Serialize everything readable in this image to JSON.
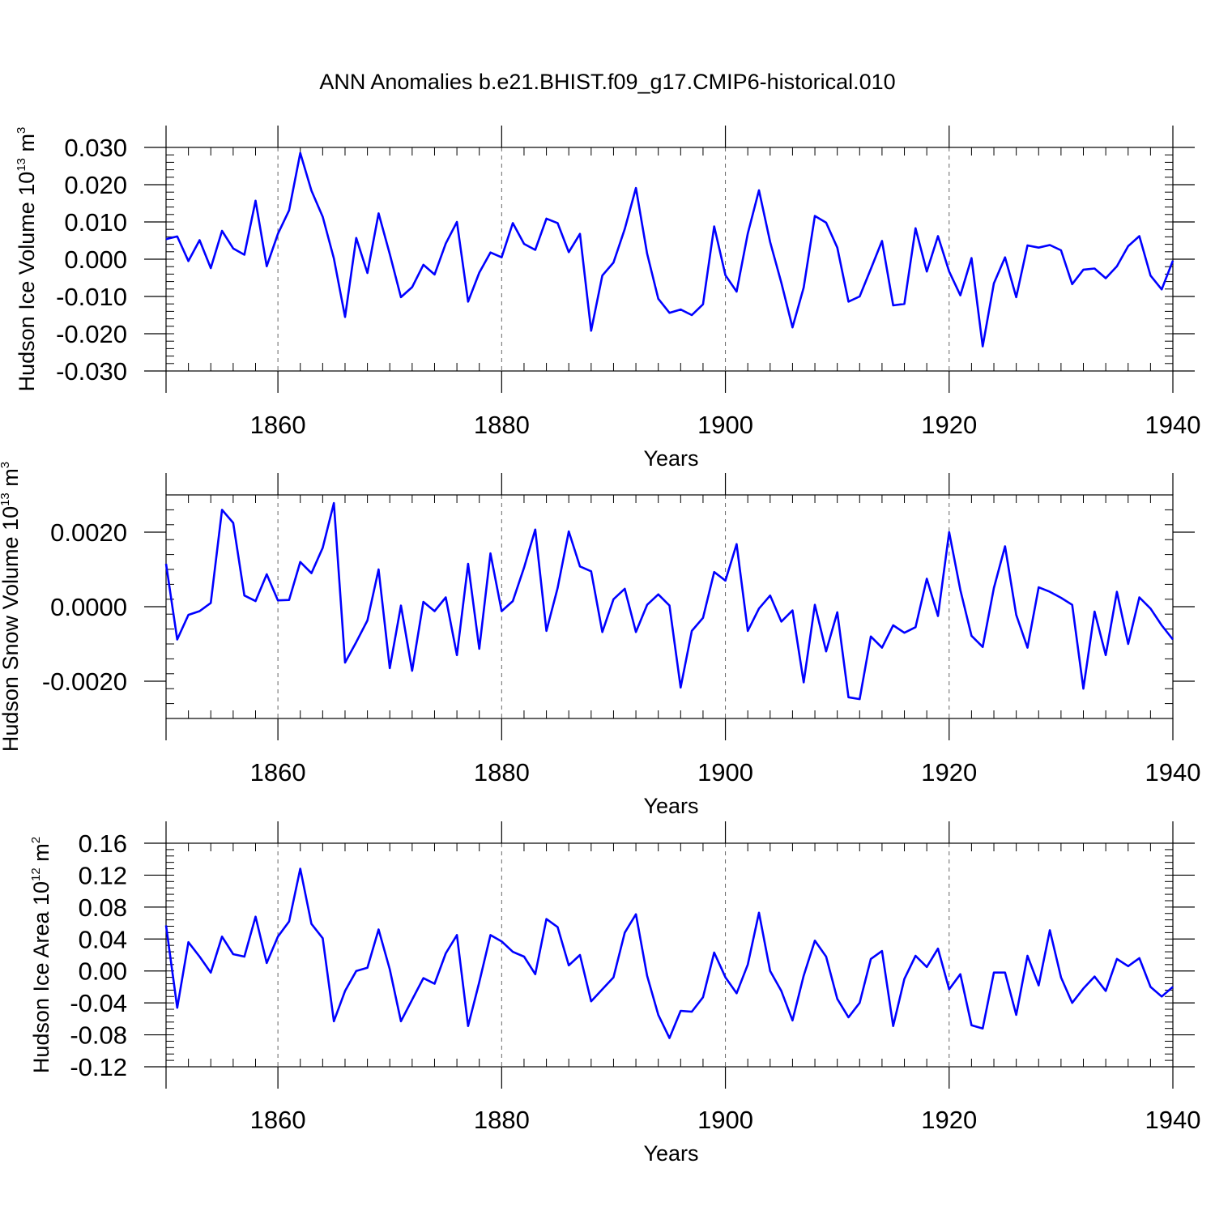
{
  "title": "ANN Anomalies b.e21.BHIST.f09_g17.CMIP6-historical.010",
  "colors": {
    "line": "#0000ff",
    "axes": "#000000",
    "grid": "#666666"
  },
  "chart_data": [
    {
      "type": "line",
      "ylabel_main": "Hudson Ice Volume 10",
      "ylabel_exp": "13",
      "ylabel_unit": "m",
      "ylabel_unit_exp": "3",
      "xlabel": "Years",
      "xlim": [
        1850,
        1940
      ],
      "ylim": [
        -0.03,
        0.03
      ],
      "x_ticks": [
        "1860",
        "1880",
        "1900",
        "1920",
        "1940"
      ],
      "y_ticks": [
        "0.030",
        "0.020",
        "0.010",
        "0.000",
        "-0.010",
        "-0.020",
        "-0.030"
      ],
      "y_tick_values": [
        0.03,
        0.02,
        0.01,
        0.0,
        -0.01,
        -0.02,
        -0.03
      ],
      "x_start": 1850,
      "values": [
        0.0054,
        0.0061,
        -0.0005,
        0.0051,
        -0.0024,
        0.0076,
        0.0029,
        0.0012,
        0.0157,
        -0.0019,
        0.0068,
        0.0131,
        0.0285,
        0.0184,
        0.0114,
        0.0002,
        -0.0155,
        0.0057,
        -0.0037,
        0.0123,
        0.0014,
        -0.0102,
        -0.0075,
        -0.0015,
        -0.0041,
        0.0042,
        0.01,
        -0.0114,
        -0.0036,
        0.0018,
        0.0005,
        0.0097,
        0.0041,
        0.0025,
        0.0109,
        0.0097,
        0.0019,
        0.0068,
        -0.0192,
        -0.0044,
        -0.0009,
        0.0081,
        0.0191,
        0.0015,
        -0.0106,
        -0.0144,
        -0.0135,
        -0.015,
        -0.0121,
        0.0088,
        -0.0043,
        -0.0087,
        0.0069,
        0.0185,
        0.0046,
        -0.0063,
        -0.0183,
        -0.0076,
        0.0116,
        0.0098,
        0.0031,
        -0.0114,
        -0.01,
        -0.0026,
        0.0049,
        -0.0124,
        -0.012,
        0.0083,
        -0.0033,
        0.0062,
        -0.0033,
        -0.0097,
        0.0003,
        -0.0234,
        -0.0065,
        0.0005,
        -0.0102,
        0.0037,
        0.0031,
        0.0038,
        0.0024,
        -0.0067,
        -0.0028,
        -0.0025,
        -0.0051,
        -0.0019,
        0.0035,
        0.0062,
        -0.0044,
        -0.0081,
        -0.0004
      ]
    },
    {
      "type": "line",
      "ylabel_main": "Hudson Snow Volume 10",
      "ylabel_exp": "13",
      "ylabel_unit": "m",
      "ylabel_unit_exp": "3",
      "xlabel": "Years",
      "xlim": [
        1850,
        1940
      ],
      "ylim": [
        -0.003,
        0.003
      ],
      "x_ticks": [
        "1860",
        "1880",
        "1900",
        "1920",
        "1940"
      ],
      "y_ticks": [
        "0.0020",
        "0.0000",
        "-0.0020"
      ],
      "y_tick_values": [
        0.002,
        0.0,
        -0.002
      ],
      "x_start": 1850,
      "values": [
        0.00115,
        -0.00088,
        -0.00022,
        -0.00012,
        0.0001,
        0.0026,
        0.00225,
        0.0003,
        0.00015,
        0.00087,
        0.00017,
        0.00018,
        0.0012,
        0.0009,
        0.00158,
        0.00278,
        -0.0015,
        -0.00095,
        -0.00037,
        0.001,
        -0.00165,
        3e-05,
        -0.00172,
        0.00013,
        -0.00012,
        0.00025,
        -0.0013,
        0.00115,
        -0.00113,
        0.00143,
        -0.00012,
        0.00015,
        0.00105,
        0.00207,
        -0.00065,
        0.0005,
        0.00202,
        0.00108,
        0.00095,
        -0.00068,
        0.0002,
        0.00048,
        -0.00068,
        5e-05,
        0.00033,
        3e-05,
        -0.00217,
        -0.00065,
        -0.0003,
        0.00093,
        0.0007,
        0.00168,
        -0.00065,
        -5e-05,
        0.0003,
        -0.0004,
        -0.0001,
        -0.00203,
        5e-05,
        -0.0012,
        -0.00015,
        -0.00243,
        -0.00248,
        -0.0008,
        -0.0011,
        -0.0005,
        -0.0007,
        -0.00055,
        0.00075,
        -0.00025,
        0.002,
        0.00045,
        -0.00078,
        -0.00108,
        0.0005,
        0.00162,
        -0.00022,
        -0.0011,
        0.00052,
        0.0004,
        0.00024,
        5e-05,
        -0.0022,
        -0.00013,
        -0.0013,
        0.0004,
        -0.001,
        0.00025,
        -5e-05,
        -0.0005,
        -0.00088
      ]
    },
    {
      "type": "line",
      "ylabel_main": "Hudson Ice Area 10",
      "ylabel_exp": "12",
      "ylabel_unit": "m",
      "ylabel_unit_exp": "2",
      "xlabel": "Years",
      "xlim": [
        1850,
        1940
      ],
      "ylim": [
        -0.12,
        0.16
      ],
      "x_ticks": [
        "1860",
        "1880",
        "1900",
        "1920",
        "1940"
      ],
      "y_ticks": [
        "0.16",
        "0.12",
        "0.08",
        "0.04",
        "0.00",
        "-0.04",
        "-0.08",
        "-0.12"
      ],
      "y_tick_values": [
        0.16,
        0.12,
        0.08,
        0.04,
        0.0,
        -0.04,
        -0.08,
        -0.12
      ],
      "x_start": 1850,
      "values": [
        0.057,
        -0.046,
        0.036,
        0.018,
        -0.002,
        0.043,
        0.021,
        0.018,
        0.068,
        0.01,
        0.043,
        0.062,
        0.128,
        0.059,
        0.041,
        -0.063,
        -0.025,
        0.0,
        0.004,
        0.052,
        0.002,
        -0.063,
        -0.036,
        -0.009,
        -0.016,
        0.022,
        0.045,
        -0.069,
        -0.014,
        0.045,
        0.037,
        0.024,
        0.018,
        -0.004,
        0.065,
        0.055,
        0.007,
        0.02,
        -0.038,
        -0.023,
        -0.008,
        0.048,
        0.071,
        -0.006,
        -0.055,
        -0.084,
        -0.05,
        -0.051,
        -0.033,
        0.023,
        -0.008,
        -0.028,
        0.008,
        0.073,
        0.0,
        -0.025,
        -0.062,
        -0.006,
        0.038,
        0.018,
        -0.035,
        -0.058,
        -0.04,
        0.015,
        0.025,
        -0.069,
        -0.01,
        0.019,
        0.005,
        0.028,
        -0.023,
        -0.004,
        -0.068,
        -0.072,
        -0.002,
        -0.002,
        -0.055,
        0.019,
        -0.018,
        0.051,
        -0.008,
        -0.04,
        -0.022,
        -0.007,
        -0.025,
        0.015,
        0.006,
        0.016,
        -0.02,
        -0.032,
        -0.02
      ]
    }
  ]
}
